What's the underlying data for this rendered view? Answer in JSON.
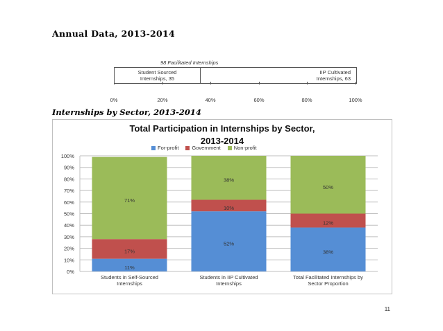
{
  "headings": {
    "annual": "Annual Data, 2013-2014",
    "sector": "Internships by Sector, 2013-2014"
  },
  "facilitated": {
    "caption": "98 Facilitated Internships",
    "segments": [
      {
        "label_line1": "Student Sourced",
        "label_line2": "Internships, 35",
        "value": 35
      },
      {
        "label_line1": "IIP Cultivated",
        "label_line2": "Internships, 63",
        "value": 63
      }
    ],
    "axis_ticks": [
      "0%",
      "20%",
      "40%",
      "60%",
      "80%",
      "100%"
    ]
  },
  "chart_data": {
    "type": "bar",
    "stacked": true,
    "title_line1": "Total Participation in Internships by Sector,",
    "title_line2": "2013-2014",
    "categories": [
      [
        "Students in Self-Sourced",
        "Internships"
      ],
      [
        "Students in IIP Cultivated",
        "Internships"
      ],
      [
        "Total Facilitated Internships by",
        "Sector Proportion"
      ]
    ],
    "series": [
      {
        "name": "For-profit",
        "color": "#558ed5",
        "values": [
          11,
          52,
          38
        ],
        "labels": [
          "11%",
          "52%",
          "38%"
        ]
      },
      {
        "name": "Government",
        "color": "#c0504d",
        "values": [
          17,
          10,
          12
        ],
        "labels": [
          "17%",
          "10%",
          "12%"
        ]
      },
      {
        "name": "Non-profit",
        "color": "#9bbb59",
        "values": [
          71,
          38,
          50
        ],
        "labels": [
          "71%",
          "38%",
          "50%"
        ]
      }
    ],
    "ylim": [
      0,
      100
    ],
    "yticks": [
      "0%",
      "10%",
      "20%",
      "30%",
      "40%",
      "50%",
      "60%",
      "70%",
      "80%",
      "90%",
      "100%"
    ],
    "grid": true,
    "legend_position": "top"
  },
  "page_number": "11"
}
